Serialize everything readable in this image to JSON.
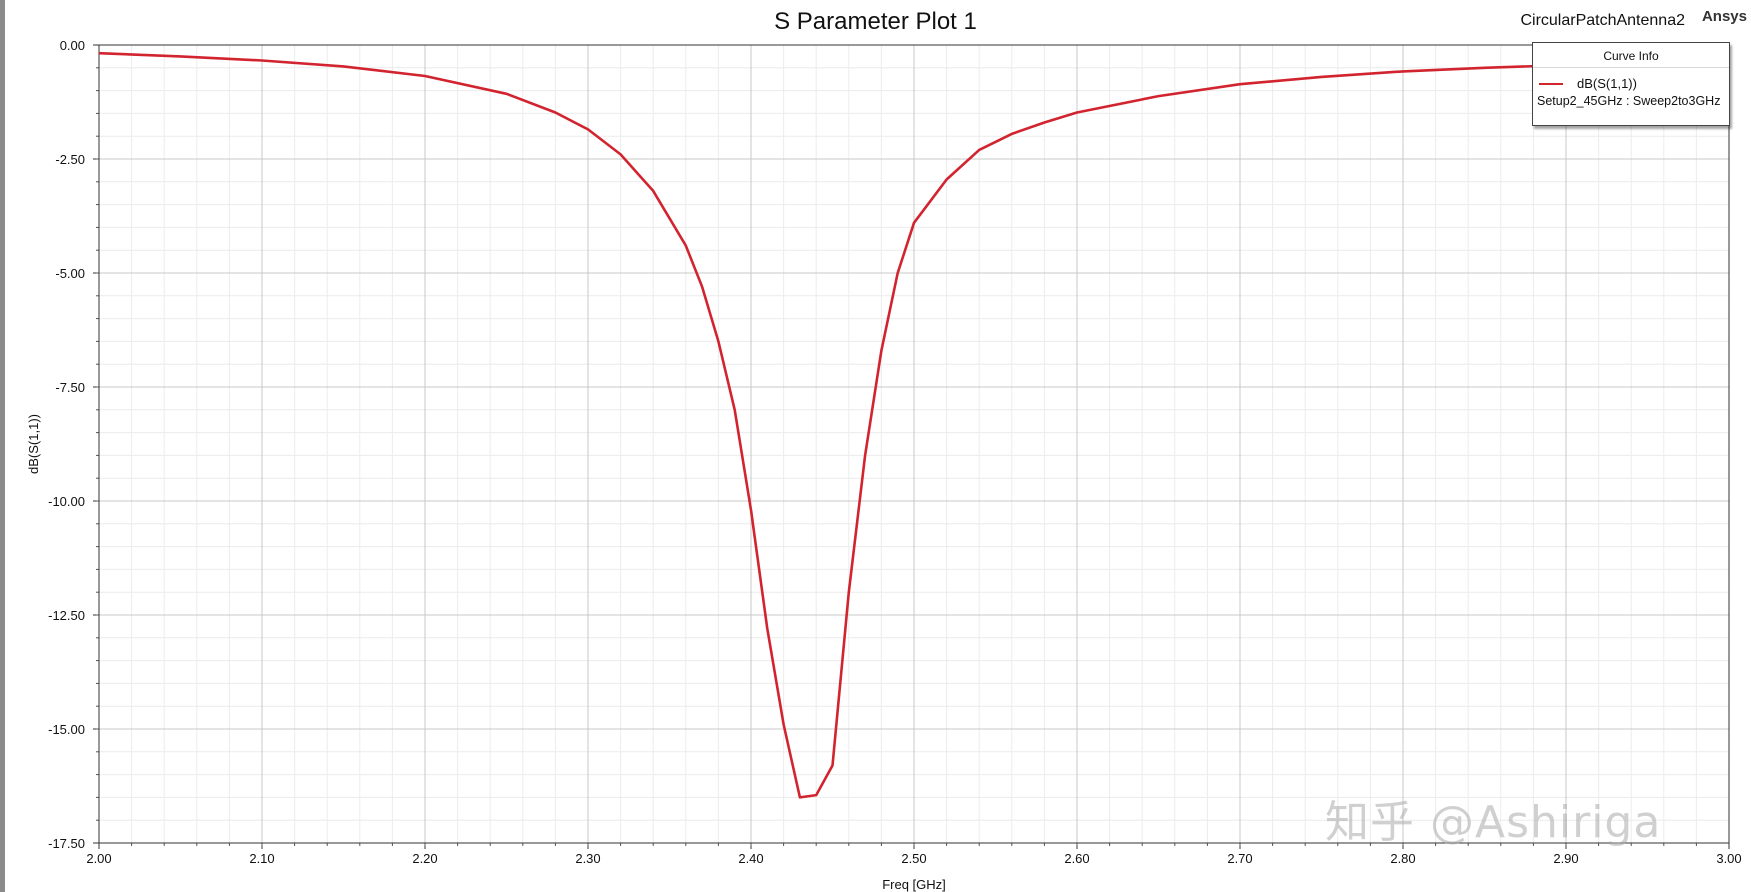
{
  "window": {
    "project_name": "CircularPatchAntenna2",
    "brand": "Ansys",
    "watermark": "知乎 @Ashiriga"
  },
  "legend": {
    "header": "Curve Info",
    "entries": [
      {
        "name": "dB(S(1,1))",
        "setup": "Setup2_45GHz : Sweep2to3GHz",
        "color": "#d2242f"
      }
    ]
  },
  "chart_data": {
    "type": "line",
    "title": "S Parameter Plot 1",
    "xlabel": "Freq [GHz]",
    "ylabel": "dB(S(1,1))",
    "xlim": [
      2.0,
      3.0
    ],
    "ylim": [
      -17.5,
      0.0
    ],
    "x_ticks": [
      "2.00",
      "2.10",
      "2.20",
      "2.30",
      "2.40",
      "2.50",
      "2.60",
      "2.70",
      "2.80",
      "2.90",
      "3.00"
    ],
    "y_ticks": [
      "0.00",
      "-2.50",
      "-5.00",
      "-7.50",
      "-10.00",
      "-12.50",
      "-15.00",
      "-17.50"
    ],
    "grid": true,
    "series": [
      {
        "name": "dB(S(1,1))",
        "color": "#d2242f",
        "x": [
          2.0,
          2.05,
          2.1,
          2.15,
          2.2,
          2.25,
          2.28,
          2.3,
          2.32,
          2.34,
          2.36,
          2.37,
          2.38,
          2.39,
          2.4,
          2.41,
          2.42,
          2.43,
          2.44,
          2.45,
          2.46,
          2.47,
          2.48,
          2.49,
          2.5,
          2.52,
          2.54,
          2.56,
          2.58,
          2.6,
          2.65,
          2.7,
          2.75,
          2.8,
          2.85,
          2.9,
          2.95,
          3.0
        ],
        "y": [
          -0.18,
          -0.25,
          -0.34,
          -0.47,
          -0.68,
          -1.07,
          -1.48,
          -1.85,
          -2.4,
          -3.2,
          -4.4,
          -5.3,
          -6.5,
          -8.0,
          -10.2,
          -12.8,
          -14.9,
          -16.5,
          -16.45,
          -15.8,
          -12.0,
          -9.0,
          -6.7,
          -5.0,
          -3.9,
          -2.95,
          -2.3,
          -1.95,
          -1.7,
          -1.48,
          -1.12,
          -0.86,
          -0.7,
          -0.58,
          -0.5,
          -0.44,
          -0.39,
          -0.36
        ]
      }
    ]
  }
}
